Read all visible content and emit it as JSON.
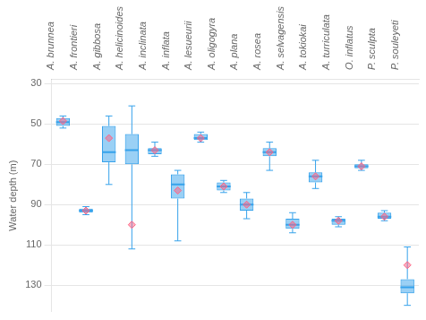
{
  "chart_data": {
    "type": "box",
    "categories": [
      "A. brunnea",
      "A. frontieri",
      "A. gibbosa",
      "A. helicinoides",
      "A. inclinata",
      "A. inflata",
      "A. lesueurii",
      "A. oligogyra",
      "A. plana",
      "A. rosea",
      "A. selvagensis",
      "A. tokiokai",
      "A. turriculata",
      "O. inflatus",
      "P. sculpta",
      "P. souleyeti"
    ],
    "boxes": [
      {
        "whislo": 46,
        "q1": 47,
        "med": 49,
        "q3": 51,
        "whishi": 52,
        "mean": 48.5
      },
      {
        "whislo": 91,
        "q1": 92,
        "med": 93,
        "q3": 94,
        "whishi": 95,
        "mean": 93
      },
      {
        "whislo": 46,
        "q1": 51,
        "med": 64,
        "q3": 69,
        "whishi": 80,
        "mean": 57
      },
      {
        "whislo": 41,
        "q1": 55,
        "med": 63,
        "q3": 70,
        "whishi": 112,
        "mean": 100
      },
      {
        "whislo": 59,
        "q1": 62,
        "med": 63,
        "q3": 65,
        "whishi": 66,
        "mean": 63
      },
      {
        "whislo": 73,
        "q1": 75,
        "med": 80,
        "q3": 87,
        "whishi": 108,
        "mean": 83
      },
      {
        "whislo": 54,
        "q1": 55,
        "med": 57,
        "q3": 58,
        "whishi": 59,
        "mean": 57
      },
      {
        "whislo": 78,
        "q1": 79,
        "med": 81,
        "q3": 83,
        "whishi": 84,
        "mean": 81
      },
      {
        "whislo": 84,
        "q1": 87,
        "med": 90,
        "q3": 93,
        "whishi": 97,
        "mean": 90
      },
      {
        "whislo": 59,
        "q1": 62,
        "med": 64,
        "q3": 66,
        "whishi": 73,
        "mean": 64
      },
      {
        "whislo": 94,
        "q1": 97,
        "med": 100,
        "q3": 102,
        "whishi": 104,
        "mean": 100
      },
      {
        "whislo": 68,
        "q1": 74,
        "med": 76,
        "q3": 79,
        "whishi": 82,
        "mean": 76
      },
      {
        "whislo": 96,
        "q1": 97,
        "med": 98,
        "q3": 100,
        "whishi": 101,
        "mean": 98
      },
      {
        "whislo": 68,
        "q1": 70,
        "med": 71,
        "q3": 72,
        "whishi": 73,
        "mean": 71
      },
      {
        "whislo": 93,
        "q1": 94,
        "med": 96,
        "q3": 97,
        "whishi": 98,
        "mean": 96
      },
      {
        "whislo": 111,
        "q1": 127,
        "med": 131,
        "q3": 134,
        "whishi": 140,
        "mean": 120
      }
    ],
    "ylabel": "Water depth (m)",
    "ylim": [
      143,
      28
    ],
    "yticks": [
      30,
      50,
      70,
      90,
      110,
      130
    ],
    "grid": true,
    "marker": "diamond"
  }
}
